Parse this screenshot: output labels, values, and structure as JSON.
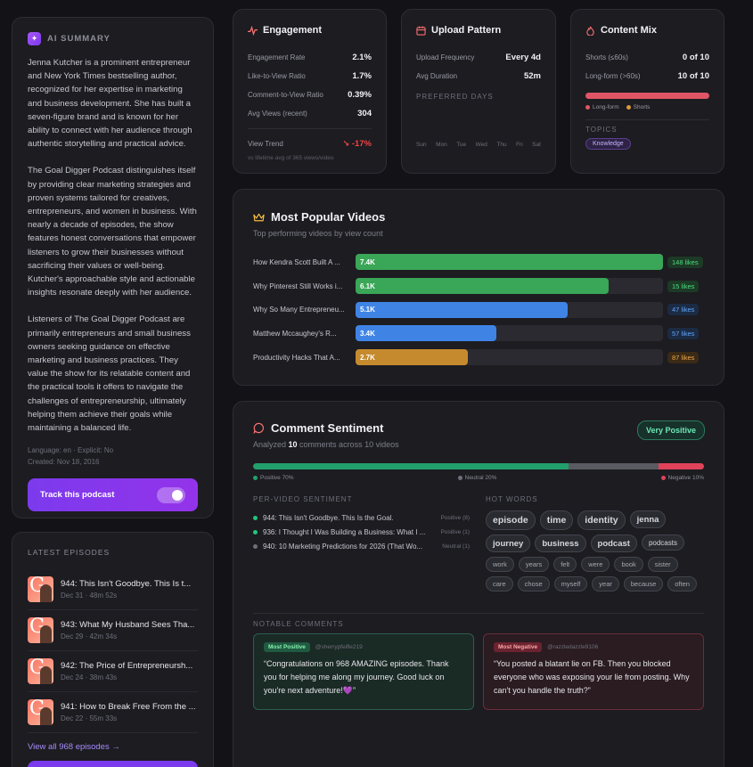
{
  "ai_summary": {
    "label": "AI SUMMARY",
    "paragraphs": [
      "Jenna Kutcher is a prominent entrepreneur and New York Times bestselling author, recognized for her expertise in marketing and business development. She has built a seven-figure brand and is known for her ability to connect with her audience through authentic storytelling and practical advice.",
      "The Goal Digger Podcast distinguishes itself by providing clear marketing strategies and proven systems tailored for creatives, entrepreneurs, and women in business. With nearly a decade of episodes, the show features honest conversations that empower listeners to grow their businesses without sacrificing their values or well-being. Kutcher's approachable style and actionable insights resonate deeply with her audience.",
      "Listeners of The Goal Digger Podcast are primarily entrepreneurs and small business owners seeking guidance on effective marketing and business practices. They value the show for its relatable content and the practical tools it offers to navigate the challenges of entrepreneurship, ultimately helping them achieve their goals while maintaining a balanced life."
    ],
    "meta_line1": "Language: en · Explicit: No",
    "meta_line2": "Created: Nov 18, 2016",
    "track_label": "Track this podcast"
  },
  "episodes": {
    "heading": "LATEST EPISODES",
    "items": [
      {
        "title": "944: This Isn't Goodbye. This Is t...",
        "meta": "Dec 31 · 48m 52s"
      },
      {
        "title": "943: What My Husband Sees Tha...",
        "meta": "Dec 29 · 42m 34s"
      },
      {
        "title": "942: The Price of Entrepreneursh...",
        "meta": "Dec 24 · 38m 43s"
      },
      {
        "title": "941: How to Break Free From the ...",
        "meta": "Dec 22 · 55m 33s"
      }
    ],
    "view_all": "View all 968 episodes →"
  },
  "engagement": {
    "title": "Engagement",
    "rows": [
      {
        "label": "Engagement Rate",
        "value": "2.1%"
      },
      {
        "label": "Like-to-View Ratio",
        "value": "1.7%"
      },
      {
        "label": "Comment-to-View Ratio",
        "value": "0.39%"
      },
      {
        "label": "Avg Views (recent)",
        "value": "304"
      }
    ],
    "trend_label": "View Trend",
    "trend_value": "↘ -17%",
    "note": "vs lifetime avg of 365 views/video"
  },
  "upload": {
    "title": "Upload Pattern",
    "rows": [
      {
        "label": "Upload Frequency",
        "value": "Every 4d"
      },
      {
        "label": "Avg Duration",
        "value": "52m"
      }
    ],
    "preferred_label": "PREFERRED DAYS",
    "days": [
      "Sun",
      "Mon",
      "Tue",
      "Wed",
      "Thu",
      "Fri",
      "Sat"
    ]
  },
  "mix": {
    "title": "Content Mix",
    "rows": [
      {
        "label": "Shorts (≤60s)",
        "value": "0 of 10"
      },
      {
        "label": "Long-form (>60s)",
        "value": "10 of 10"
      }
    ],
    "long_form_share": 1.0,
    "legend_long": "Long-form",
    "legend_short": "Shorts",
    "topics_label": "TOPICS",
    "topic": "Knowledge"
  },
  "popular": {
    "title": "Most Popular Videos",
    "subtitle": "Top performing videos by view count",
    "videos": [
      {
        "title": "How Kendra Scott Built A ...",
        "views": "7.4K",
        "likes": "148 likes",
        "share": 1.0,
        "color": "#3aa657",
        "likes_color": "#4ade80",
        "likes_bg": "#1d3a26"
      },
      {
        "title": "Why Pinterest Still Works i...",
        "views": "6.1K",
        "likes": "15 likes",
        "share": 0.824,
        "color": "#3aa657",
        "likes_color": "#4ade80",
        "likes_bg": "#1d3a26"
      },
      {
        "title": "Why So Many Entrepreneu...",
        "views": "5.1K",
        "likes": "47 likes",
        "share": 0.689,
        "color": "#3f84e5",
        "likes_color": "#60a5fa",
        "likes_bg": "#1c2b44"
      },
      {
        "title": "Matthew Mccaughey's R...",
        "views": "3.4K",
        "likes": "57 likes",
        "share": 0.459,
        "color": "#3f84e5",
        "likes_color": "#60a5fa",
        "likes_bg": "#1c2b44"
      },
      {
        "title": "Productivity Hacks That A...",
        "views": "2.7K",
        "likes": "87 likes",
        "share": 0.365,
        "color": "#c68a2e",
        "likes_color": "#f0a94a",
        "likes_bg": "#3a2a16"
      }
    ]
  },
  "sentiment": {
    "title": "Comment Sentiment",
    "verdict": "Very Positive",
    "analyzed_prefix": "Analyzed ",
    "analyzed_count": "10",
    "analyzed_suffix": " comments across 10 videos",
    "positive_share": 0.7,
    "neutral_share": 0.2,
    "negative_share": 0.1,
    "positive_label": "Positive 70%",
    "neutral_label": "Neutral 20%",
    "negative_label": "Negative 10%",
    "colors": {
      "positive": "#22a06b",
      "neutral": "#5a5a62",
      "negative": "#e0425a"
    },
    "per_video_label": "PER-VIDEO SENTIMENT",
    "per_video": [
      {
        "title": "944: This Isn't Goodbye. This Is the Goal.",
        "score": "Positive (8)",
        "color": "#22c57a"
      },
      {
        "title": "936: I Thought I Was Building a Business: What I ...",
        "score": "Positive (1)",
        "color": "#22c57a"
      },
      {
        "title": "940: 10 Marketing Predictions for 2026 (That Wo...",
        "score": "Neutral (1)",
        "color": "#6f6f7a"
      }
    ],
    "hot_words_label": "HOT WORDS",
    "hot_words": [
      {
        "word": "episode",
        "tier": 1
      },
      {
        "word": "time",
        "tier": 1
      },
      {
        "word": "identity",
        "tier": 1
      },
      {
        "word": "jenna",
        "tier": 2
      },
      {
        "word": "journey",
        "tier": 2
      },
      {
        "word": "business",
        "tier": 2
      },
      {
        "word": "podcast",
        "tier": 2
      },
      {
        "word": "podcasts",
        "tier": 3
      },
      {
        "word": "work",
        "tier": 4
      },
      {
        "word": "years",
        "tier": 4
      },
      {
        "word": "felt",
        "tier": 4
      },
      {
        "word": "were",
        "tier": 4
      },
      {
        "word": "book",
        "tier": 4
      },
      {
        "word": "sister",
        "tier": 4
      },
      {
        "word": "care",
        "tier": 4
      },
      {
        "word": "chose",
        "tier": 4
      },
      {
        "word": "myself",
        "tier": 4
      },
      {
        "word": "year",
        "tier": 4
      },
      {
        "word": "because",
        "tier": 4
      },
      {
        "word": "often",
        "tier": 4
      }
    ],
    "notable_label": "NOTABLE COMMENTS",
    "positive_comment": {
      "tag": "Most Positive",
      "user": "@sherrypfeifle219",
      "text": "“Congratulations on 968 AMAZING episodes. Thank you for helping me along my journey. Good luck on you're next adventure!💜”"
    },
    "negative_comment": {
      "tag": "Most Negative",
      "user": "@razzledazzle9106",
      "text": "“You posted a blatant lie on FB. Then you blocked everyone who was exposing your lie from posting. Why can't you handle the truth?”"
    }
  }
}
